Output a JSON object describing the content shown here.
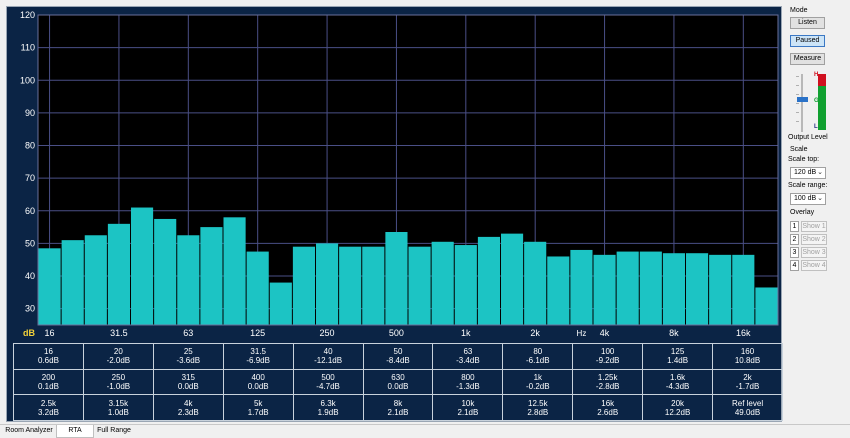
{
  "chart_data": {
    "type": "bar",
    "categories": [
      "16",
      "20",
      "25",
      "31.5",
      "40",
      "50",
      "63",
      "80",
      "100",
      "125",
      "160",
      "200",
      "250",
      "315",
      "400",
      "500",
      "630",
      "800",
      "1k",
      "1.25k",
      "1.6k",
      "2k",
      "2.5k",
      "3.15k",
      "4k",
      "5k",
      "6.3k",
      "8k",
      "10k",
      "12.5k",
      "16k",
      "20k"
    ],
    "values": [
      48.5,
      51,
      52.5,
      56,
      61,
      57.5,
      52.5,
      55,
      58,
      47.5,
      38,
      49,
      50,
      49,
      49,
      53.5,
      49,
      50.5,
      49.5,
      52,
      53,
      50.5,
      46,
      48,
      46.5,
      47.5,
      47.5,
      47,
      47,
      46.5,
      46.5,
      36.5
    ],
    "ylim": [
      25,
      120
    ],
    "yticks": [
      30,
      40,
      50,
      60,
      70,
      80,
      90,
      100,
      110,
      120
    ],
    "ylabel": "dB",
    "xticks": [
      "16",
      "31.5",
      "63",
      "125",
      "250",
      "500",
      "1k",
      "2k",
      "4k",
      "8k",
      "16k"
    ],
    "xunit": "Hz",
    "bar_color": "#1cc4c4",
    "grid": true
  },
  "bands": [
    [
      {
        "f": "16",
        "v": "0.6dB"
      },
      {
        "f": "20",
        "v": "-2.0dB"
      },
      {
        "f": "25",
        "v": "-3.6dB"
      },
      {
        "f": "31.5",
        "v": "-6.9dB"
      },
      {
        "f": "40",
        "v": "-12.1dB"
      },
      {
        "f": "50",
        "v": "-8.4dB"
      },
      {
        "f": "63",
        "v": "-3.4dB"
      },
      {
        "f": "80",
        "v": "-6.1dB"
      },
      {
        "f": "100",
        "v": "-9.2dB"
      },
      {
        "f": "125",
        "v": "1.4dB"
      },
      {
        "f": "160",
        "v": "10.8dB"
      }
    ],
    [
      {
        "f": "200",
        "v": "0.1dB"
      },
      {
        "f": "250",
        "v": "-1.0dB"
      },
      {
        "f": "315",
        "v": "0.0dB"
      },
      {
        "f": "400",
        "v": "0.0dB"
      },
      {
        "f": "500",
        "v": "-4.7dB"
      },
      {
        "f": "630",
        "v": "0.0dB"
      },
      {
        "f": "800",
        "v": "-1.3dB"
      },
      {
        "f": "1k",
        "v": "-0.2dB"
      },
      {
        "f": "1.25k",
        "v": "-2.8dB"
      },
      {
        "f": "1.6k",
        "v": "-4.3dB"
      },
      {
        "f": "2k",
        "v": "-1.7dB"
      }
    ],
    [
      {
        "f": "2.5k",
        "v": "3.2dB"
      },
      {
        "f": "3.15k",
        "v": "1.0dB"
      },
      {
        "f": "4k",
        "v": "2.3dB"
      },
      {
        "f": "5k",
        "v": "1.7dB"
      },
      {
        "f": "6.3k",
        "v": "1.9dB"
      },
      {
        "f": "8k",
        "v": "2.1dB"
      },
      {
        "f": "10k",
        "v": "2.1dB"
      },
      {
        "f": "12.5k",
        "v": "2.8dB"
      },
      {
        "f": "16k",
        "v": "2.6dB"
      },
      {
        "f": "20k",
        "v": "12.2dB"
      },
      {
        "f": "Ref level",
        "v": "49.0dB"
      }
    ]
  ],
  "panel": {
    "mode_label": "Mode",
    "listen": "Listen",
    "paused": "Paused",
    "measure": "Measure",
    "meter_h": "H",
    "meter_g": "G",
    "meter_l": "L",
    "output_level": "Output Level",
    "scale_label": "Scale",
    "scale_top_label": "Scale top:",
    "scale_top_value": "120 dB",
    "scale_range_label": "Scale range:",
    "scale_range_value": "100 dB",
    "overlay_label": "Overlay",
    "overlays": [
      {
        "num": "1",
        "label": "Show 1"
      },
      {
        "num": "2",
        "label": "Show 2"
      },
      {
        "num": "3",
        "label": "Show 3"
      },
      {
        "num": "4",
        "label": "Show 4"
      }
    ]
  },
  "tabs": {
    "room_analyzer": "Room Analyzer",
    "rta": "RTA",
    "full_range": "Full Range"
  },
  "colors": {
    "background": "#0b2445",
    "plot": "#000000",
    "grid": "#4a4f86",
    "axis_label": "#f2d23a",
    "meter_red": "#d01020",
    "meter_green": "#10a030",
    "slider": "#2a72c8"
  }
}
